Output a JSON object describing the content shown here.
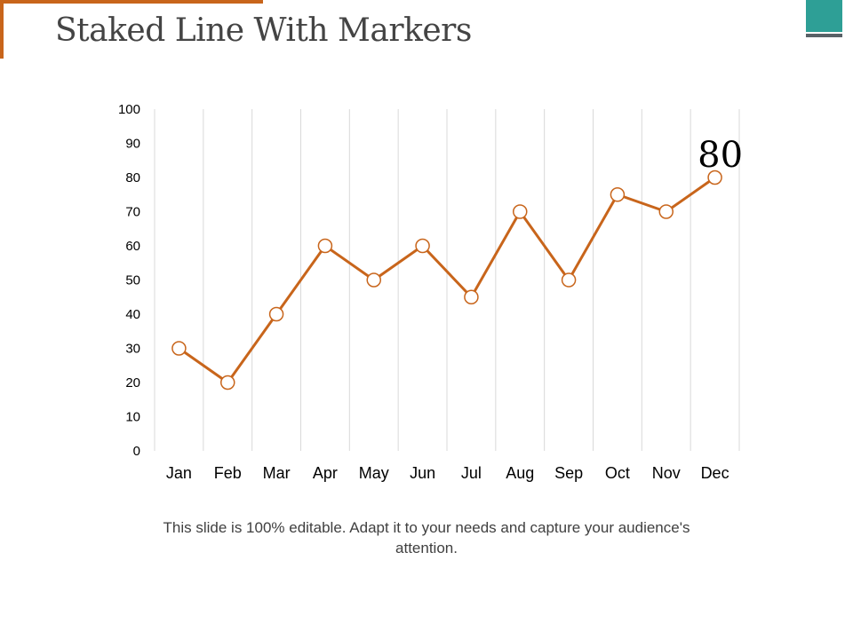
{
  "slide": {
    "title": "Staked Line With Markers",
    "caption": "This slide is 100% editable. Adapt it to your needs and capture your audience's attention."
  },
  "colors": {
    "accent": "#C8651B",
    "title_text": "#444444",
    "teal": "#2E9F96",
    "slate": "#596167",
    "gridline": "#D9D9D9",
    "axis_text": "#000000"
  },
  "chart_data": {
    "type": "line",
    "title": "",
    "xlabel": "",
    "ylabel": "",
    "categories": [
      "Jan",
      "Feb",
      "Mar",
      "Apr",
      "May",
      "Jun",
      "Jul",
      "Aug",
      "Sep",
      "Oct",
      "Nov",
      "Dec"
    ],
    "series": [
      {
        "values": [
          30,
          20,
          40,
          60,
          50,
          60,
          45,
          70,
          50,
          75,
          70,
          80
        ]
      }
    ],
    "ylim": [
      0,
      100
    ],
    "yticks": [
      "0",
      "10",
      "20",
      "30",
      "40",
      "50",
      "60",
      "70",
      "80",
      "90",
      "100"
    ],
    "grid": "vertical",
    "markers": "hollow circles",
    "annotation": {
      "category": "Dec",
      "text": "80"
    }
  }
}
